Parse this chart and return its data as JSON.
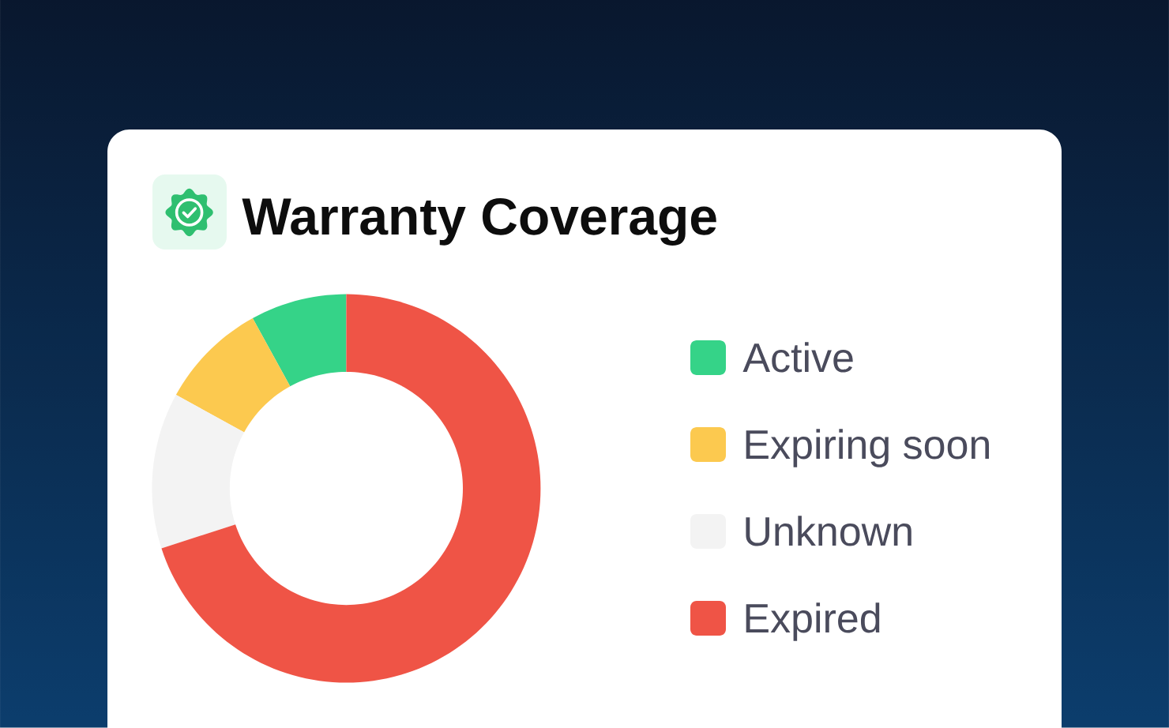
{
  "chart_data": {
    "type": "donut",
    "title": "Warranty Coverage",
    "categories": [
      "Active",
      "Expiring soon",
      "Unknown",
      "Expired"
    ],
    "values": [
      8,
      9,
      13,
      70
    ],
    "colors": [
      "#35d388",
      "#fcc94f",
      "#f3f3f3",
      "#ef5446"
    ],
    "legend": "right"
  }
}
